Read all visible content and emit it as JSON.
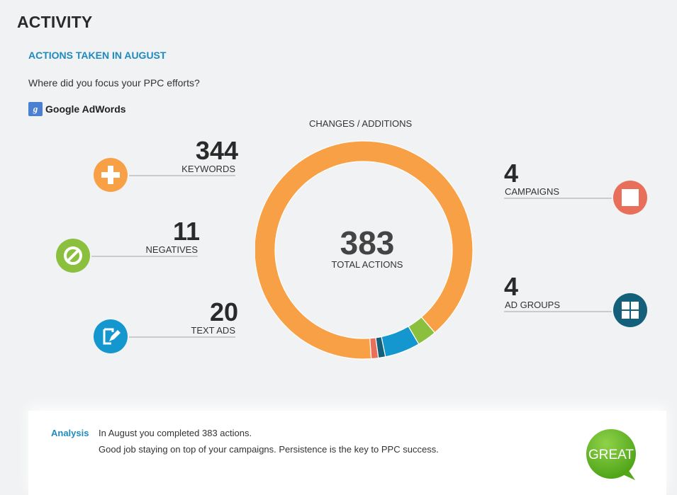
{
  "header": {
    "title": "ACTIVITY"
  },
  "section": {
    "title": "ACTIONS TAKEN IN AUGUST",
    "question": "Where did you focus your PPC efforts?",
    "platform": {
      "icon_letter": "g",
      "name": "Google AdWords",
      "icon": "google-g-icon"
    }
  },
  "stats": {
    "keywords": {
      "value": "344",
      "label": "KEYWORDS",
      "color": "#f7a046",
      "icon": "plus-icon"
    },
    "negatives": {
      "value": "11",
      "label": "NEGATIVES",
      "color": "#8bc03f",
      "icon": "no-sign-icon"
    },
    "text_ads": {
      "value": "20",
      "label": "TEXT ADS",
      "color": "#1497cf",
      "icon": "edit-ad-icon"
    },
    "campaigns": {
      "value": "4",
      "label": "CAMPAIGNS",
      "color": "#e8705a",
      "icon": "square-icon"
    },
    "ad_groups": {
      "value": "4",
      "label": "AD GROUPS",
      "color": "#14607a",
      "icon": "grid-icon"
    }
  },
  "chart_data": {
    "type": "pie",
    "title": "CHANGES / ADDITIONS",
    "center_value": "383",
    "center_label": "TOTAL ACTIONS",
    "slices": [
      {
        "name": "KEYWORDS",
        "value": 344,
        "color": "#f7a046"
      },
      {
        "name": "NEGATIVES",
        "value": 11,
        "color": "#8bc03f"
      },
      {
        "name": "TEXT ADS",
        "value": 20,
        "color": "#1497cf"
      },
      {
        "name": "AD GROUPS",
        "value": 4,
        "color": "#14607a"
      },
      {
        "name": "CAMPAIGNS",
        "value": 4,
        "color": "#e8705a"
      }
    ]
  },
  "analysis": {
    "title": "Analysis",
    "line1": "In August you completed 383 actions.",
    "line2": "Good job staying on top of your campaigns. Persistence is the key to PPC success.",
    "badge": "GREAT",
    "badge_color": "#6cbf2e"
  }
}
